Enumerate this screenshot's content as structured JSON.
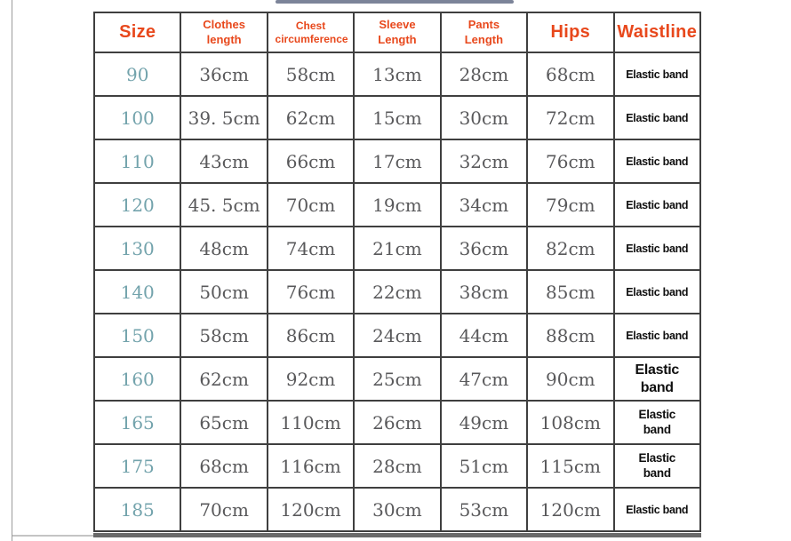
{
  "colors": {
    "header_text": "#e8481c",
    "size_value_text": "#73a3ac",
    "measurement_text": "#59595b",
    "waistline_text": "#0f0f0f",
    "table_border": "#3f3f3f",
    "top_bar": "#7c8499",
    "bottom_bar": "#6a6a6a"
  },
  "table": {
    "columns": [
      {
        "key": "size",
        "label": "Size",
        "header_size": "large"
      },
      {
        "key": "clothes_length",
        "label": "Clothes length",
        "header_size": "small"
      },
      {
        "key": "chest",
        "label": "Chest circumference",
        "header_size": "xsmall"
      },
      {
        "key": "sleeve",
        "label": "Sleeve Length",
        "header_size": "small"
      },
      {
        "key": "pants",
        "label": "Pants Length",
        "header_size": "small"
      },
      {
        "key": "hips",
        "label": "Hips",
        "header_size": "large"
      },
      {
        "key": "waistline",
        "label": "Waistline",
        "header_size": "large"
      }
    ],
    "rows": [
      {
        "size": "90",
        "clothes_length": "36cm",
        "chest": "58cm",
        "sleeve": "13cm",
        "pants": "28cm",
        "hips": "68cm",
        "waistline": "Elastic band",
        "waistline_size": "small"
      },
      {
        "size": "100",
        "clothes_length": "39. 5cm",
        "chest": "62cm",
        "sleeve": "15cm",
        "pants": "30cm",
        "hips": "72cm",
        "waistline": "Elastic band",
        "waistline_size": "small"
      },
      {
        "size": "110",
        "clothes_length": "43cm",
        "chest": "66cm",
        "sleeve": "17cm",
        "pants": "32cm",
        "hips": "76cm",
        "waistline": "Elastic band",
        "waistline_size": "small"
      },
      {
        "size": "120",
        "clothes_length": "45. 5cm",
        "chest": "70cm",
        "sleeve": "19cm",
        "pants": "34cm",
        "hips": "79cm",
        "waistline": "Elastic band",
        "waistline_size": "small"
      },
      {
        "size": "130",
        "clothes_length": "48cm",
        "chest": "74cm",
        "sleeve": "21cm",
        "pants": "36cm",
        "hips": "82cm",
        "waistline": "Elastic band",
        "waistline_size": "small"
      },
      {
        "size": "140",
        "clothes_length": "50cm",
        "chest": "76cm",
        "sleeve": "22cm",
        "pants": "38cm",
        "hips": "85cm",
        "waistline": "Elastic band",
        "waistline_size": "small"
      },
      {
        "size": "150",
        "clothes_length": "58cm",
        "chest": "86cm",
        "sleeve": "24cm",
        "pants": "44cm",
        "hips": "88cm",
        "waistline": "Elastic band",
        "waistline_size": "small"
      },
      {
        "size": "160",
        "clothes_length": "62cm",
        "chest": "92cm",
        "sleeve": "25cm",
        "pants": "47cm",
        "hips": "90cm",
        "waistline": "Elastic band",
        "waistline_size": "large"
      },
      {
        "size": "165",
        "clothes_length": "65cm",
        "chest": "110cm",
        "sleeve": "26cm",
        "pants": "49cm",
        "hips": "108cm",
        "waistline": "Elastic band",
        "waistline_size": "medium"
      },
      {
        "size": "175",
        "clothes_length": "68cm",
        "chest": "116cm",
        "sleeve": "28cm",
        "pants": "51cm",
        "hips": "115cm",
        "waistline": "Elastic band",
        "waistline_size": "medium"
      },
      {
        "size": "185",
        "clothes_length": "70cm",
        "chest": "120cm",
        "sleeve": "30cm",
        "pants": "53cm",
        "hips": "120cm",
        "waistline": "Elastic band",
        "waistline_size": "small"
      }
    ]
  },
  "chart_data": {
    "type": "table",
    "title": "",
    "columns": [
      "Size",
      "Clothes length",
      "Chest circumference",
      "Sleeve Length",
      "Pants Length",
      "Hips",
      "Waistline"
    ],
    "rows": [
      [
        "90",
        "36cm",
        "58cm",
        "13cm",
        "28cm",
        "68cm",
        "Elastic band"
      ],
      [
        "100",
        "39. 5cm",
        "62cm",
        "15cm",
        "30cm",
        "72cm",
        "Elastic band"
      ],
      [
        "110",
        "43cm",
        "66cm",
        "17cm",
        "32cm",
        "76cm",
        "Elastic band"
      ],
      [
        "120",
        "45. 5cm",
        "70cm",
        "19cm",
        "34cm",
        "79cm",
        "Elastic band"
      ],
      [
        "130",
        "48cm",
        "74cm",
        "21cm",
        "36cm",
        "82cm",
        "Elastic band"
      ],
      [
        "140",
        "50cm",
        "76cm",
        "22cm",
        "38cm",
        "85cm",
        "Elastic band"
      ],
      [
        "150",
        "58cm",
        "86cm",
        "24cm",
        "44cm",
        "88cm",
        "Elastic band"
      ],
      [
        "160",
        "62cm",
        "92cm",
        "25cm",
        "47cm",
        "90cm",
        "Elastic band"
      ],
      [
        "165",
        "65cm",
        "110cm",
        "26cm",
        "49cm",
        "108cm",
        "Elastic band"
      ],
      [
        "175",
        "68cm",
        "116cm",
        "28cm",
        "51cm",
        "115cm",
        "Elastic band"
      ],
      [
        "185",
        "70cm",
        "120cm",
        "30cm",
        "53cm",
        "120cm",
        "Elastic band"
      ]
    ]
  }
}
